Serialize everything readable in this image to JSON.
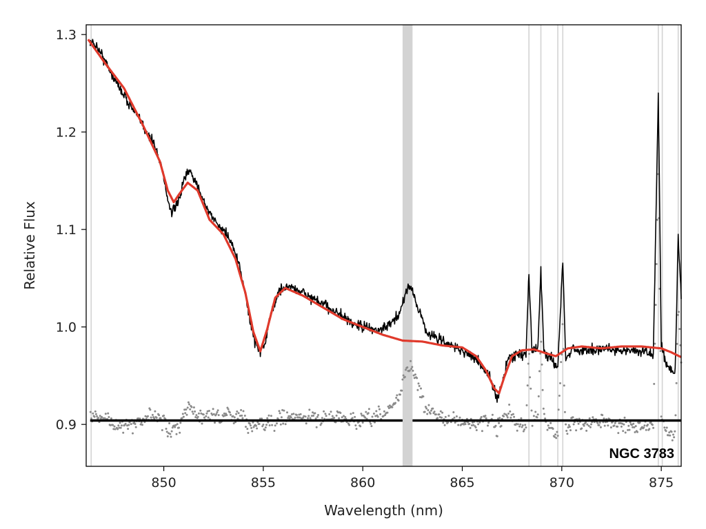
{
  "chart_data": {
    "type": "line",
    "title": "",
    "xlabel": "Wavelength (nm)",
    "ylabel": "Relative Flux",
    "xlim": [
      846.1,
      876.0
    ],
    "ylim": [
      0.857,
      1.31
    ],
    "xticks": [
      850,
      855,
      860,
      865,
      870,
      875
    ],
    "yticks": [
      0.9,
      1.0,
      1.1,
      1.2,
      1.3
    ],
    "xtick_labels": [
      "850",
      "855",
      "860",
      "865",
      "870",
      "875"
    ],
    "ytick_labels": [
      "0.9",
      "1.0",
      "1.1",
      "1.2",
      "1.3"
    ],
    "grid": false,
    "legend": "none",
    "annotation": "NGC 3783",
    "colors": {
      "observed": "#000000",
      "model": "#e0392b",
      "residuals": "#8a8a8a",
      "masked": "#d3d3d3",
      "zero_line": "#000000"
    },
    "masked_regions": [
      [
        862.0,
        862.5
      ]
    ],
    "masked_lines": [
      846.35,
      868.35,
      868.95,
      869.8,
      870.05,
      874.85,
      875.05,
      875.85
    ],
    "residual_baseline": 0.904,
    "series": [
      {
        "role": "observed",
        "x": [
          846.3,
          846.6,
          847.0,
          847.5,
          848.0,
          848.5,
          849.0,
          849.5,
          849.9,
          850.2,
          850.4,
          850.7,
          851.0,
          851.3,
          851.7,
          852.2,
          852.7,
          853.2,
          853.6,
          854.0,
          854.3,
          854.6,
          854.85,
          855.1,
          855.4,
          855.8,
          856.3,
          857.0,
          857.8,
          858.5,
          859.3,
          860.0,
          860.8,
          861.5,
          861.9,
          862.2,
          862.4,
          862.7,
          863.2,
          864.0,
          864.8,
          865.5,
          866.0,
          866.4,
          866.75,
          867.0,
          867.3,
          867.8,
          868.2,
          868.35,
          868.5,
          868.8,
          868.95,
          869.1,
          869.5,
          869.8,
          870.05,
          870.2,
          870.5,
          871.0,
          872.0,
          873.0,
          874.0,
          874.6,
          874.85,
          875.0,
          875.3,
          875.7,
          875.85,
          876.0
        ],
        "y": [
          1.292,
          1.289,
          1.275,
          1.255,
          1.238,
          1.222,
          1.205,
          1.188,
          1.165,
          1.13,
          1.118,
          1.125,
          1.15,
          1.16,
          1.145,
          1.12,
          1.105,
          1.095,
          1.075,
          1.045,
          1.01,
          0.985,
          0.975,
          0.985,
          1.015,
          1.037,
          1.042,
          1.035,
          1.025,
          1.018,
          1.005,
          1.0,
          0.996,
          1.004,
          1.015,
          1.04,
          1.042,
          1.025,
          0.995,
          0.985,
          0.978,
          0.97,
          0.96,
          0.948,
          0.925,
          0.942,
          0.968,
          0.973,
          0.97,
          1.055,
          0.975,
          0.98,
          1.058,
          0.975,
          0.965,
          0.958,
          1.07,
          0.965,
          0.978,
          0.975,
          0.978,
          0.976,
          0.975,
          0.972,
          1.238,
          0.98,
          0.96,
          0.955,
          1.092,
          1.03
        ]
      },
      {
        "role": "model",
        "x": [
          846.2,
          847.0,
          848.0,
          849.0,
          849.8,
          850.2,
          850.5,
          850.8,
          851.2,
          851.7,
          852.3,
          853.0,
          853.6,
          854.1,
          854.5,
          854.85,
          855.2,
          855.6,
          856.1,
          857.0,
          858.0,
          859.0,
          860.0,
          861.0,
          862.0,
          863.0,
          864.0,
          865.0,
          865.7,
          866.2,
          866.6,
          866.85,
          867.1,
          867.5,
          868.0,
          868.6,
          869.2,
          869.7,
          870.3,
          871.0,
          872.0,
          873.0,
          874.0,
          875.0,
          875.5,
          876.0
        ],
        "y": [
          1.295,
          1.272,
          1.245,
          1.205,
          1.17,
          1.14,
          1.128,
          1.137,
          1.148,
          1.14,
          1.11,
          1.095,
          1.07,
          1.035,
          0.995,
          0.975,
          0.998,
          1.03,
          1.04,
          1.032,
          1.02,
          1.008,
          1.0,
          0.992,
          0.986,
          0.985,
          0.981,
          0.979,
          0.97,
          0.955,
          0.937,
          0.932,
          0.948,
          0.97,
          0.976,
          0.977,
          0.973,
          0.97,
          0.978,
          0.98,
          0.978,
          0.98,
          0.98,
          0.978,
          0.974,
          0.969
        ]
      }
    ]
  }
}
